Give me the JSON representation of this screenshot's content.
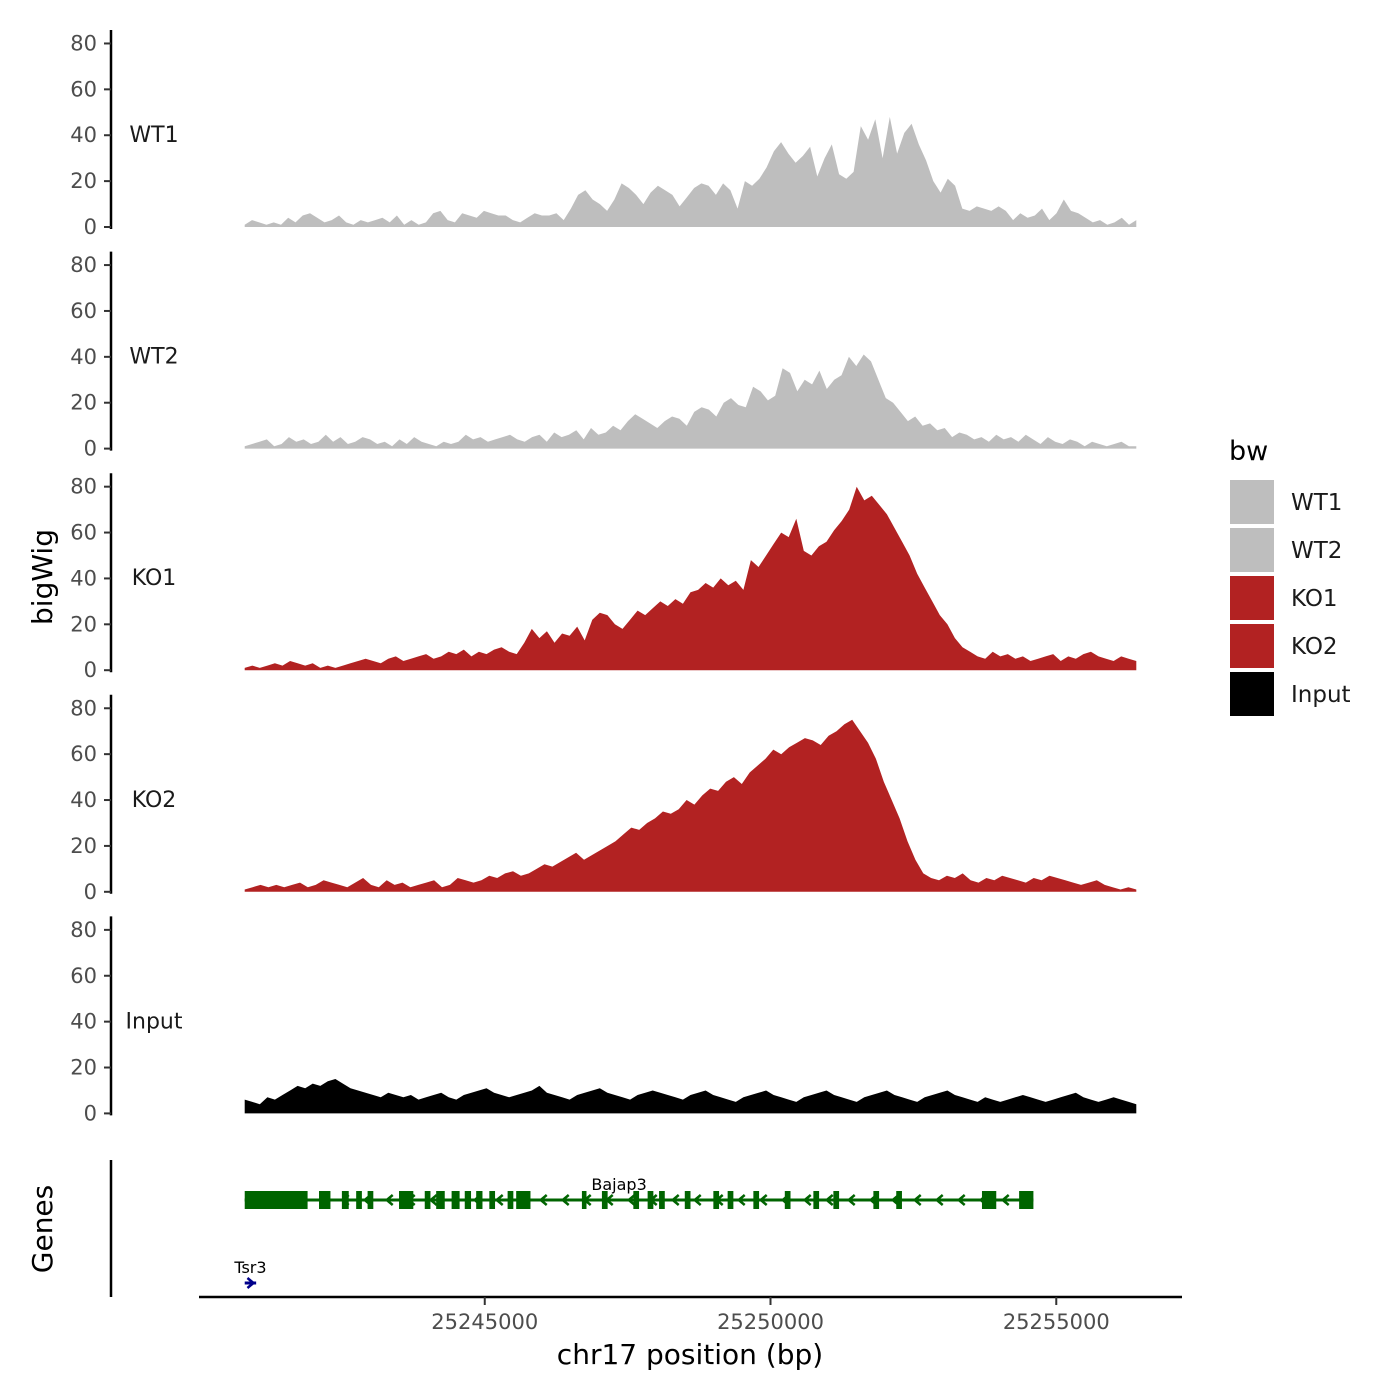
{
  "chart_data": {
    "type": "area",
    "ylabel": "bigWig",
    "genes_label": "Genes",
    "xlabel": "chr17 position (bp)",
    "xlim": [
      25240000,
      25257200
    ],
    "ylim": [
      0,
      85
    ],
    "y_ticks": [
      "0",
      "20",
      "40",
      "60",
      "80"
    ],
    "x_ticks": [
      {
        "value": 25245000,
        "label": "25245000"
      },
      {
        "value": 25250000,
        "label": "25250000"
      },
      {
        "value": 25255000,
        "label": "25255000"
      }
    ],
    "x_start": 25240800,
    "x_end": 25256400,
    "track_names": [
      "WT1",
      "WT2",
      "KO1",
      "KO2",
      "Input"
    ],
    "tracks": [
      {
        "name": "WT1",
        "color": "#bebebe",
        "values": [
          1,
          3,
          2,
          1,
          2,
          1,
          4,
          2,
          5,
          6,
          4,
          2,
          3,
          5,
          2,
          1,
          3,
          2,
          3,
          4,
          2,
          5,
          1,
          3,
          1,
          2,
          6,
          7,
          3,
          2,
          6,
          5,
          4,
          7,
          6,
          5,
          5,
          3,
          2,
          4,
          6,
          5,
          5,
          6,
          3,
          8,
          14,
          16,
          12,
          10,
          7,
          12,
          19,
          17,
          14,
          10,
          15,
          18,
          16,
          14,
          9,
          13,
          17,
          19,
          18,
          14,
          19,
          16,
          8,
          20,
          18,
          21,
          26,
          33,
          37,
          32,
          28,
          31,
          35,
          22,
          30,
          36,
          23,
          21,
          24,
          44,
          38,
          47,
          30,
          48,
          32,
          41,
          45,
          36,
          29,
          20,
          15,
          21,
          18,
          8,
          7,
          9,
          8,
          7,
          9,
          7,
          3,
          6,
          4,
          5,
          8,
          3,
          6,
          12,
          7,
          6,
          4,
          2,
          3,
          1,
          2,
          4,
          1,
          3
        ]
      },
      {
        "name": "WT2",
        "color": "#bebebe",
        "values": [
          1,
          2,
          3,
          4,
          1,
          2,
          5,
          3,
          4,
          2,
          3,
          6,
          3,
          5,
          2,
          3,
          5,
          4,
          2,
          3,
          1,
          4,
          2,
          5,
          3,
          2,
          1,
          3,
          2,
          3,
          6,
          4,
          5,
          3,
          4,
          5,
          6,
          4,
          3,
          5,
          6,
          3,
          7,
          5,
          6,
          8,
          4,
          9,
          6,
          7,
          10,
          8,
          12,
          15,
          13,
          11,
          9,
          12,
          14,
          13,
          10,
          16,
          18,
          17,
          14,
          20,
          22,
          19,
          18,
          27,
          25,
          21,
          23,
          35,
          33,
          25,
          30,
          28,
          34,
          26,
          30,
          32,
          40,
          36,
          41,
          38,
          30,
          22,
          20,
          16,
          12,
          14,
          10,
          11,
          8,
          9,
          5,
          7,
          6,
          4,
          5,
          3,
          6,
          4,
          5,
          3,
          6,
          4,
          2,
          5,
          3,
          2,
          4,
          3,
          1,
          3,
          2,
          1,
          2,
          3,
          1,
          1
        ]
      },
      {
        "name": "KO1",
        "color": "#b22222",
        "values": [
          1,
          2,
          1,
          2,
          3,
          2,
          4,
          3,
          2,
          3,
          1,
          2,
          1,
          2,
          3,
          4,
          5,
          4,
          3,
          5,
          6,
          4,
          5,
          6,
          7,
          5,
          6,
          8,
          7,
          9,
          6,
          8,
          7,
          9,
          10,
          8,
          7,
          12,
          18,
          14,
          17,
          12,
          16,
          15,
          19,
          13,
          22,
          25,
          24,
          20,
          18,
          22,
          26,
          24,
          27,
          30,
          28,
          31,
          29,
          34,
          35,
          38,
          36,
          40,
          37,
          39,
          35,
          48,
          45,
          50,
          55,
          60,
          58,
          66,
          52,
          50,
          54,
          56,
          61,
          65,
          70,
          80,
          74,
          76,
          72,
          68,
          62,
          56,
          50,
          42,
          36,
          30,
          24,
          20,
          14,
          10,
          8,
          6,
          5,
          8,
          6,
          7,
          5,
          6,
          4,
          5,
          6,
          7,
          4,
          6,
          5,
          7,
          8,
          6,
          5,
          4,
          6,
          5,
          4
        ]
      },
      {
        "name": "KO2",
        "color": "#b22222",
        "values": [
          1,
          2,
          3,
          2,
          3,
          2,
          3,
          4,
          2,
          3,
          5,
          4,
          3,
          2,
          4,
          6,
          3,
          2,
          5,
          3,
          4,
          2,
          3,
          4,
          5,
          2,
          3,
          6,
          5,
          4,
          5,
          7,
          6,
          8,
          9,
          7,
          8,
          10,
          12,
          11,
          13,
          15,
          17,
          14,
          16,
          18,
          20,
          22,
          25,
          28,
          27,
          30,
          32,
          35,
          34,
          36,
          40,
          38,
          42,
          45,
          44,
          48,
          50,
          47,
          52,
          55,
          58,
          62,
          60,
          63,
          65,
          67,
          66,
          64,
          68,
          70,
          73,
          75,
          70,
          65,
          58,
          48,
          40,
          32,
          22,
          14,
          8,
          6,
          5,
          7,
          6,
          8,
          5,
          4,
          6,
          5,
          7,
          6,
          5,
          4,
          6,
          5,
          7,
          6,
          5,
          4,
          3,
          4,
          5,
          3,
          2,
          1,
          2,
          1
        ]
      },
      {
        "name": "Input",
        "color": "#000000",
        "values": [
          6,
          5,
          4,
          7,
          6,
          8,
          10,
          12,
          11,
          13,
          12,
          14,
          15,
          13,
          11,
          10,
          9,
          8,
          7,
          9,
          8,
          7,
          8,
          6,
          7,
          8,
          9,
          7,
          6,
          8,
          9,
          10,
          11,
          9,
          8,
          7,
          8,
          9,
          10,
          12,
          9,
          8,
          7,
          6,
          8,
          9,
          10,
          11,
          9,
          8,
          7,
          6,
          8,
          9,
          10,
          9,
          8,
          7,
          6,
          8,
          9,
          10,
          8,
          7,
          6,
          5,
          7,
          8,
          9,
          10,
          8,
          7,
          6,
          5,
          7,
          8,
          9,
          10,
          8,
          7,
          6,
          5,
          7,
          8,
          9,
          10,
          8,
          7,
          6,
          5,
          7,
          8,
          9,
          10,
          8,
          7,
          6,
          5,
          7,
          6,
          5,
          6,
          7,
          8,
          7,
          6,
          5,
          6,
          7,
          8,
          9,
          7,
          6,
          5,
          6,
          7,
          6,
          5,
          4
        ]
      }
    ],
    "genes": [
      {
        "name": "Bajap3",
        "color": "#006400",
        "start": 25240800,
        "end": 25254600,
        "strand": "-",
        "exons": [
          [
            25240800,
            25241900
          ],
          [
            25242100,
            25242300
          ],
          [
            25242500,
            25242620
          ],
          [
            25242750,
            25242850
          ],
          [
            25242950,
            25243050
          ],
          [
            25243500,
            25243750
          ],
          [
            25243950,
            25244050
          ],
          [
            25244150,
            25244300
          ],
          [
            25244420,
            25244560
          ],
          [
            25244650,
            25244760
          ],
          [
            25244850,
            25244960
          ],
          [
            25245080,
            25245180
          ],
          [
            25245400,
            25245500
          ],
          [
            25245550,
            25245800
          ],
          [
            25246700,
            25246780
          ],
          [
            25247050,
            25247150
          ],
          [
            25247600,
            25247700
          ],
          [
            25247850,
            25247950
          ],
          [
            25248050,
            25248150
          ],
          [
            25248500,
            25248600
          ],
          [
            25249000,
            25249100
          ],
          [
            25249250,
            25249350
          ],
          [
            25249700,
            25249800
          ],
          [
            25250250,
            25250350
          ],
          [
            25250750,
            25250850
          ],
          [
            25251100,
            25251200
          ],
          [
            25251800,
            25251900
          ],
          [
            25252200,
            25252300
          ],
          [
            25253700,
            25253950
          ],
          [
            25254350,
            25254600
          ]
        ]
      },
      {
        "name": "Tsr3",
        "color": "#00008b",
        "start": 25240800,
        "end": 25241000,
        "strand": "+",
        "exons": []
      }
    ],
    "legend": {
      "title": "bw",
      "items": [
        {
          "label": "WT1",
          "color": "#bebebe"
        },
        {
          "label": "WT2",
          "color": "#bebebe"
        },
        {
          "label": "KO1",
          "color": "#b22222"
        },
        {
          "label": "KO2",
          "color": "#b22222"
        },
        {
          "label": "Input",
          "color": "#000000"
        }
      ]
    }
  }
}
